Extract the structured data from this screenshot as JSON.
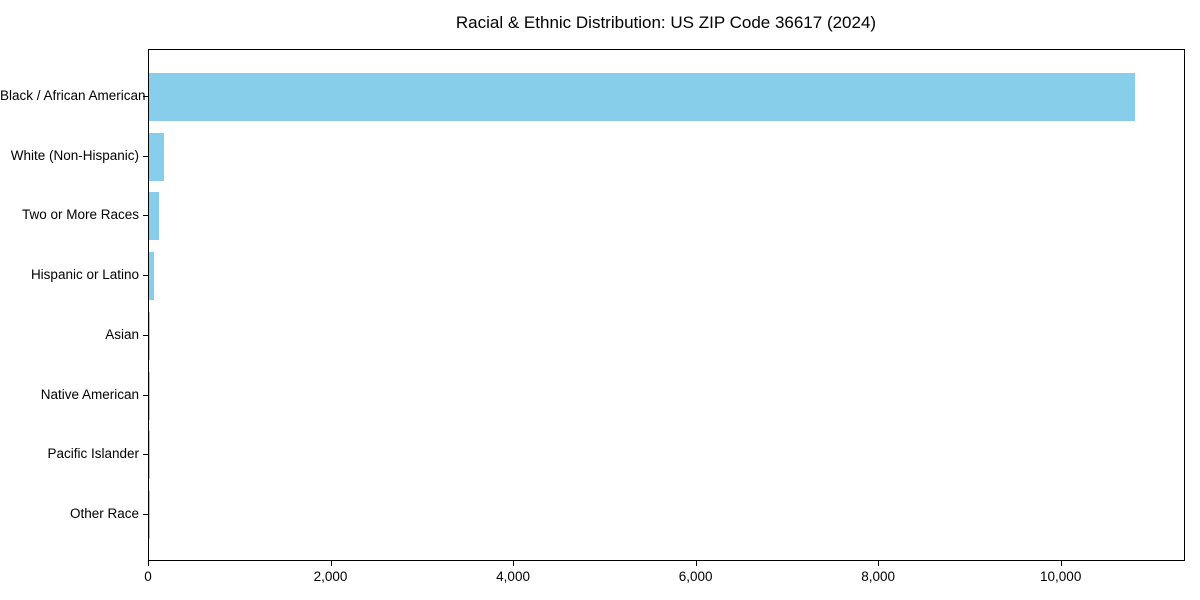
{
  "chart_data": {
    "type": "bar",
    "orientation": "horizontal",
    "title": "Racial & Ethnic Distribution: US ZIP Code 36617 (2024)",
    "categories": [
      "Black / African American",
      "White (Non-Hispanic)",
      "Two or More Races",
      "Hispanic or Latino",
      "Asian",
      "Native American",
      "Pacific Islander",
      "Other Race"
    ],
    "values": [
      10800,
      165,
      115,
      60,
      12,
      5,
      2,
      2
    ],
    "xlabel": "",
    "ylabel": "",
    "xlim": [
      0,
      11340
    ],
    "xticks": {
      "values": [
        0,
        2000,
        4000,
        6000,
        8000,
        10000
      ],
      "labels": [
        "0",
        "2,000",
        "4,000",
        "6,000",
        "8,000",
        "10,000"
      ]
    },
    "grid": false,
    "legend": null,
    "bar_color": "#87CEEB",
    "axis_color": "#000000",
    "background_color": "#ffffff"
  }
}
